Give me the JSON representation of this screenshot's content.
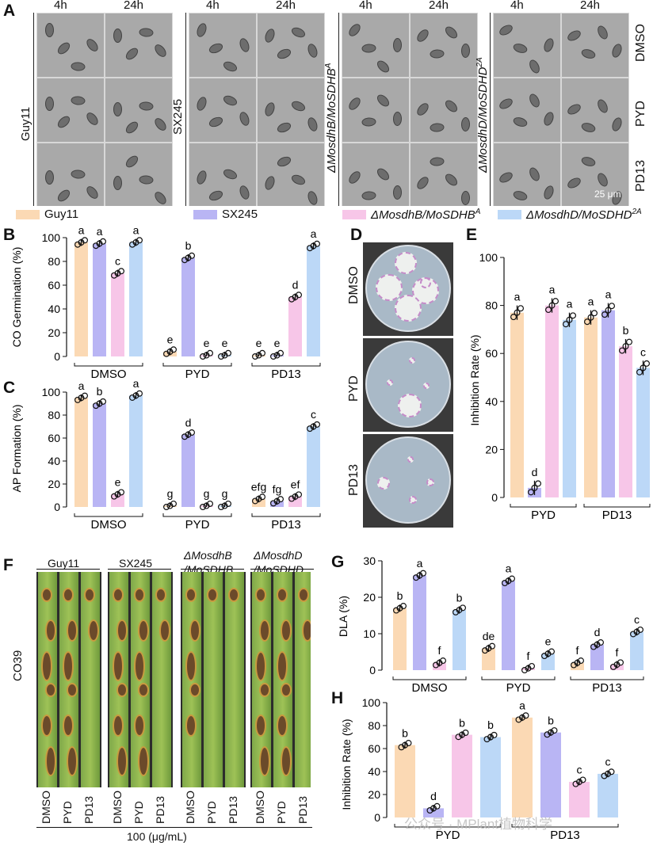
{
  "panel_letters": {
    "A": "A",
    "B": "B",
    "C": "C",
    "D": "D",
    "E": "E",
    "F": "F",
    "G": "G",
    "H": "H"
  },
  "panelA": {
    "time_labels": [
      "4h",
      "24h"
    ],
    "strains": [
      "Guy11",
      "SX245",
      "ΔMosdhB/MoSDHB",
      "ΔMosdhD/MoSDHD"
    ],
    "strain_sups": [
      "",
      "",
      "A",
      "2A"
    ],
    "treatments": [
      "DMSO",
      "PYD",
      "PD13"
    ],
    "scale_bar": "25 μm"
  },
  "legend": [
    {
      "label": "Guy11",
      "color": "#fbd9b4"
    },
    {
      "label": "SX245",
      "color": "#b9b5f4"
    },
    {
      "label": "ΔMosdhB/MoSDHB",
      "sup": "A",
      "color": "#f7c6e8"
    },
    {
      "label": "ΔMosdhD/MoSDHD",
      "sup": "2A",
      "color": "#bcd8f7"
    }
  ],
  "colors": {
    "guy11": "#fbd9b4",
    "sx245": "#b9b5f4",
    "sdhb": "#f7c6e8",
    "sdhd": "#bcd8f7"
  },
  "panelD": {
    "treatments": [
      "DMSO",
      "PYD",
      "PD13"
    ]
  },
  "panelF": {
    "strains": [
      "Guy11",
      "SX245",
      "ΔMosdhB /MoSDHB",
      "ΔMosdhD /MoSDHD"
    ],
    "cultivar": "CO39",
    "lanes": [
      "DMSO",
      "PYD",
      "PD13"
    ],
    "dose": "100 (μg/mL)"
  },
  "watermark": "公众号 · MPlant植物科学",
  "chart_data": [
    {
      "id": "B",
      "type": "bar",
      "ylabel": "CO Germination (%)",
      "ylim": [
        0,
        100
      ],
      "yticks": [
        0,
        20,
        40,
        60,
        80,
        100
      ],
      "groups": [
        "DMSO",
        "PYD",
        "PD13"
      ],
      "series_order": [
        "Guy11",
        "SX245",
        "ΔMosdhB/MoSDHBA",
        "ΔMosdhD/MoSDHD2A"
      ],
      "values": [
        [
          96,
          95,
          70,
          96
        ],
        [
          4,
          83,
          1,
          1
        ],
        [
          1,
          1,
          50,
          93
        ]
      ],
      "letters": [
        [
          "a",
          "a",
          "c",
          "a"
        ],
        [
          "e",
          "b",
          "e",
          "e"
        ],
        [
          "e",
          "e",
          "d",
          "a"
        ]
      ]
    },
    {
      "id": "C",
      "type": "bar",
      "ylabel": "AP Formation (%)",
      "ylim": [
        0,
        100
      ],
      "yticks": [
        0,
        20,
        40,
        60,
        80,
        100
      ],
      "groups": [
        "DMSO",
        "PYD",
        "PD13"
      ],
      "values": [
        [
          95,
          90,
          11,
          97
        ],
        [
          1,
          63,
          1,
          1
        ],
        [
          7,
          5,
          9,
          70
        ]
      ],
      "letters": [
        [
          "a",
          "b",
          "e",
          "a"
        ],
        [
          "g",
          "d",
          "g",
          "g"
        ],
        [
          "efg",
          "fg",
          "ef",
          "c"
        ]
      ]
    },
    {
      "id": "E",
      "type": "bar",
      "ylabel": "Inhibition Rate  (%)",
      "ylim": [
        0,
        100
      ],
      "yticks": [
        0,
        20,
        40,
        60,
        80,
        100
      ],
      "groups": [
        "PYD",
        "PD13"
      ],
      "values": [
        [
          77,
          4,
          80,
          74
        ],
        [
          75,
          78,
          63,
          54
        ]
      ],
      "letters": [
        [
          "a",
          "d",
          "a",
          "a"
        ],
        [
          "a",
          "a",
          "b",
          "c"
        ]
      ]
    },
    {
      "id": "G",
      "type": "bar",
      "ylabel": "DLA (%)",
      "ylim": [
        0,
        30
      ],
      "yticks": [
        0,
        10,
        20,
        30
      ],
      "groups": [
        "DMSO",
        "PYD",
        "PD13"
      ],
      "values": [
        [
          17,
          26,
          2,
          16.5
        ],
        [
          6,
          24.5,
          0.5,
          4.5
        ],
        [
          2,
          7,
          1.5,
          10.5
        ]
      ],
      "letters": [
        [
          "b",
          "a",
          "f",
          "b"
        ],
        [
          "de",
          "a",
          "f",
          "e"
        ],
        [
          "f",
          "d",
          "f",
          "c"
        ]
      ]
    },
    {
      "id": "H",
      "type": "bar",
      "ylabel": "Inhibition Rate  (%)",
      "ylim": [
        0,
        100
      ],
      "yticks": [
        0,
        20,
        40,
        60,
        80,
        100
      ],
      "groups": [
        "PYD",
        "PD13"
      ],
      "values": [
        [
          63,
          8,
          72,
          70
        ],
        [
          87,
          74,
          31,
          38
        ]
      ],
      "letters": [
        [
          "b",
          "d",
          "b",
          "b"
        ],
        [
          "a",
          "b",
          "c",
          "c"
        ]
      ]
    }
  ]
}
